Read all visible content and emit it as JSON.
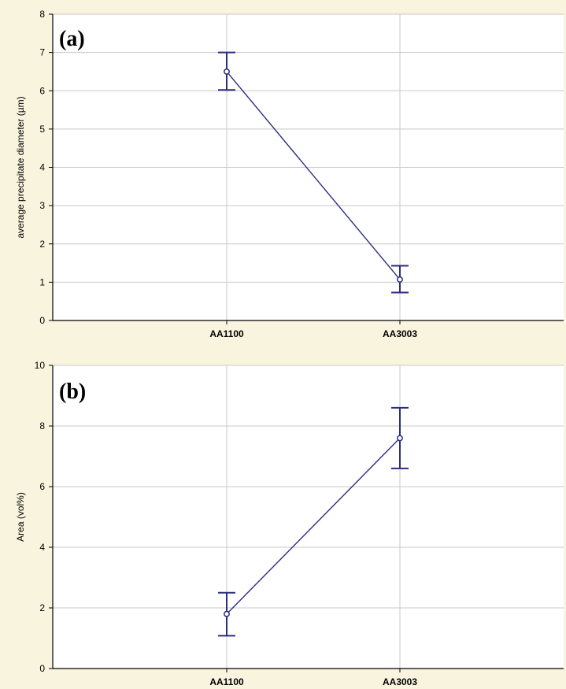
{
  "chart_data": [
    {
      "type": "line",
      "panel_label": "(a)",
      "title": "",
      "xlabel": "",
      "ylabel": "average precipitate diameter (µm)",
      "categories": [
        "AA1100",
        "AA3003"
      ],
      "ylim": [
        0,
        8
      ],
      "yticks": [
        "0",
        "1",
        "2",
        "3",
        "4",
        "5",
        "6",
        "7",
        "8"
      ],
      "grid": true,
      "series": [
        {
          "values": [
            6.5,
            1.07
          ],
          "error_low": [
            6.02,
            0.73
          ],
          "error_high": [
            7.0,
            1.43
          ]
        }
      ],
      "colors": {
        "line": "#2b2e7e",
        "grid": "#c8c8c8",
        "plot_bg": "#ffffff"
      }
    },
    {
      "type": "line",
      "panel_label": "(b)",
      "title": "",
      "xlabel": "",
      "ylabel": "Area (vol%)",
      "categories": [
        "AA1100",
        "AA3003"
      ],
      "ylim": [
        0,
        10
      ],
      "yticks": [
        "0",
        "2",
        "4",
        "6",
        "8",
        "10"
      ],
      "grid": true,
      "series": [
        {
          "values": [
            1.8,
            7.6
          ],
          "error_low": [
            1.08,
            6.6
          ],
          "error_high": [
            2.5,
            8.6
          ]
        }
      ],
      "colors": {
        "line": "#2b2e7e",
        "grid": "#c8c8c8",
        "plot_bg": "#ffffff"
      }
    }
  ]
}
